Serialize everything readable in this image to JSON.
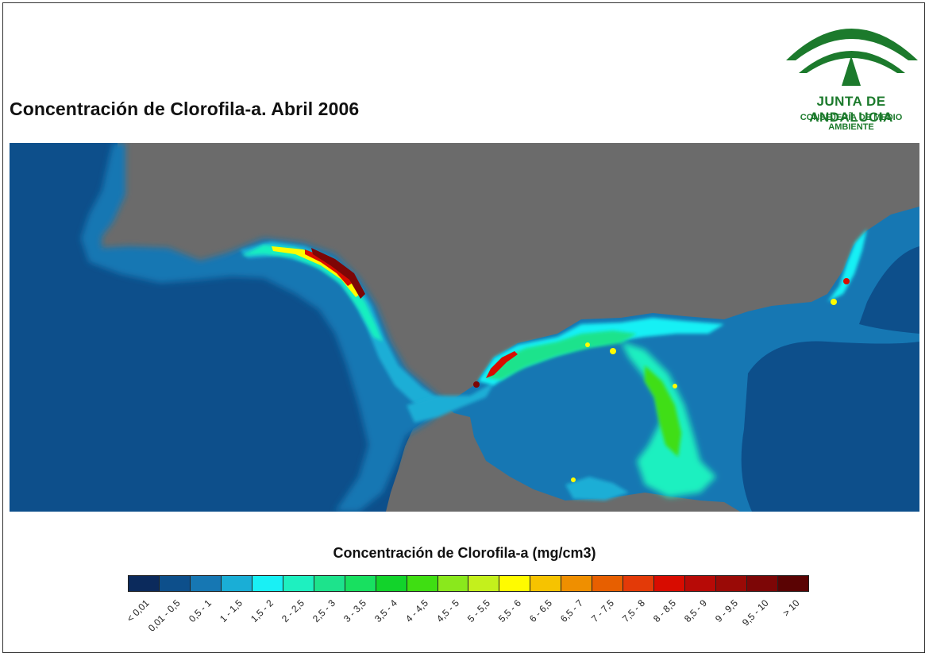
{
  "title": "Concentración de Clorofila-a. Abril 2006",
  "logo": {
    "name": "JUNTA DE ANDALUCIA",
    "subtitle": "CONSEJERÍA DE MEDIO AMBIENTE",
    "color": "#1c7a2c"
  },
  "map": {
    "land_color": "#6b6b6b",
    "ocean_base_color": "#0d4f8b"
  },
  "legend": {
    "title": "Concentración de Clorofila-a (mg/cm3)",
    "classes": [
      {
        "label": "< 0,01",
        "color": "#0b2a5c"
      },
      {
        "label": "0,01 - 0,5",
        "color": "#0d4f8b"
      },
      {
        "label": "0,5 - 1",
        "color": "#1677b3"
      },
      {
        "label": "1 - 1,5",
        "color": "#1aaed6"
      },
      {
        "label": "1,5 - 2",
        "color": "#19f0f5"
      },
      {
        "label": "2 - 2,5",
        "color": "#1ef0c0"
      },
      {
        "label": "2,5 - 3",
        "color": "#1de38c"
      },
      {
        "label": "3 - 3,5",
        "color": "#18e060"
      },
      {
        "label": "3,5 - 4",
        "color": "#12d32b"
      },
      {
        "label": "4 - 4,5",
        "color": "#3fde12"
      },
      {
        "label": "4,5 - 5",
        "color": "#8ae81c"
      },
      {
        "label": "5 - 5,5",
        "color": "#c4f01c"
      },
      {
        "label": "5,5 - 6",
        "color": "#fffb00"
      },
      {
        "label": "6 - 6,5",
        "color": "#f6c300"
      },
      {
        "label": "6,5 - 7",
        "color": "#ef8f00"
      },
      {
        "label": "7 - 7,5",
        "color": "#e75f00"
      },
      {
        "label": "7,5 - 8",
        "color": "#e33a08"
      },
      {
        "label": "8 - 8,5",
        "color": "#d80c00"
      },
      {
        "label": "8,5 - 9",
        "color": "#b70a06"
      },
      {
        "label": "9 - 9,5",
        "color": "#9a0a06"
      },
      {
        "label": "9,5 - 10",
        "color": "#7d0606"
      },
      {
        "label": "> 10",
        "color": "#5a0303"
      }
    ]
  }
}
